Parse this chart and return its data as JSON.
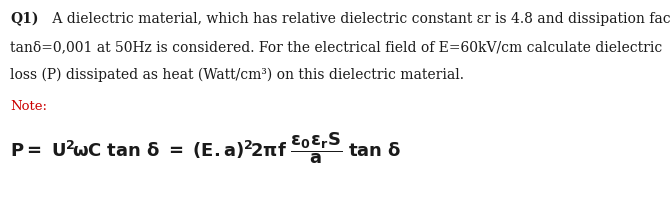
{
  "background_color": "#ffffff",
  "text_color": "#1a1a1a",
  "note_color": "#cc0000",
  "fig_width": 6.7,
  "fig_height": 1.97,
  "dpi": 100,
  "line1_bold": "Q1)",
  "line1_rest": " A dielectric material, which has relative dielectric constant εr is 4.8 and dissipation factor",
  "line2": "tanδ=0,001 at 50Hz is considered. For the electrical field of E=60kV/cm calculate dielectric",
  "line3": "loss (P) dissipated as heat (Watt/cm³) on this dielectric material.",
  "note_label": "Note:",
  "fs_text": 10.0,
  "fs_note": 9.5,
  "fs_formula": 13.0
}
